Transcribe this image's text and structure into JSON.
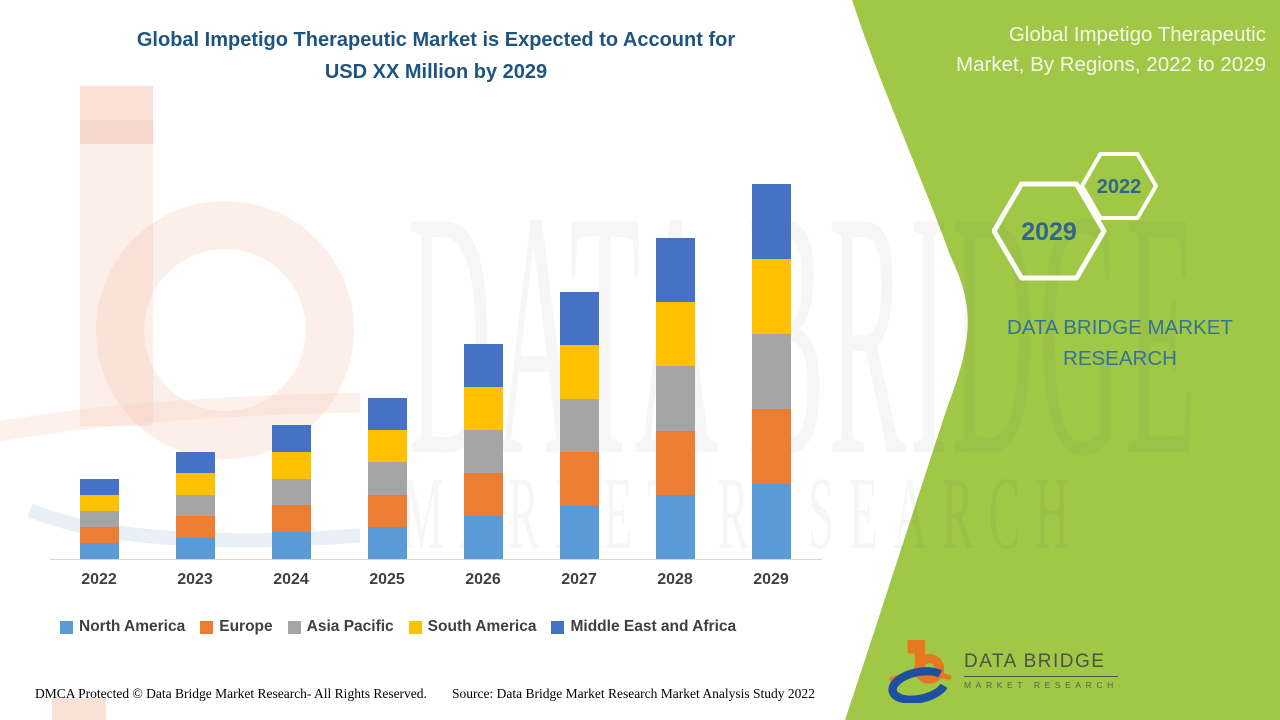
{
  "header": {
    "title_line1": "Global Impetigo Therapeutic Market is Expected to Account for",
    "title_line2": "USD XX Million by 2029"
  },
  "side_panel": {
    "title_line1": "Global Impetigo Therapeutic",
    "title_line2": "Market, By Regions, 2022 to 2029",
    "hex_year_small": "2022",
    "hex_year_large": "2029",
    "brand_line1": "DATA BRIDGE MARKET",
    "brand_line2": "RESEARCH"
  },
  "chart_data": {
    "type": "bar",
    "stacked": true,
    "title": "Global Impetigo Therapeutic Market is Expected to Account for USD XX Million by 2029",
    "categories": [
      "2022",
      "2023",
      "2024",
      "2025",
      "2026",
      "2027",
      "2028",
      "2029"
    ],
    "series": [
      {
        "name": "North America",
        "color": "#5B9BD5",
        "values": [
          16.0,
          21.4,
          26.8,
          32.2,
          43.0,
          53.4,
          64.2,
          75.0
        ]
      },
      {
        "name": "Europe",
        "color": "#ED7D31",
        "values": [
          16.0,
          21.4,
          26.8,
          32.2,
          43.0,
          53.4,
          64.2,
          75.0
        ]
      },
      {
        "name": "Asia Pacific",
        "color": "#A5A5A5",
        "values": [
          16.0,
          21.4,
          26.8,
          32.2,
          43.0,
          53.4,
          64.2,
          75.0
        ]
      },
      {
        "name": "South America",
        "color": "#FFC000",
        "values": [
          16.0,
          21.4,
          26.8,
          32.2,
          43.0,
          53.4,
          64.2,
          75.0
        ]
      },
      {
        "name": "Middle East and Africa",
        "color": "#4472C4",
        "values": [
          16.0,
          21.4,
          26.8,
          32.2,
          43.0,
          53.4,
          64.2,
          75.0
        ]
      }
    ],
    "stack_totals": [
      80,
      107,
      134,
      161,
      215,
      267,
      321,
      375
    ],
    "value_axis": {
      "visible": false,
      "ylim": [
        0,
        400
      ],
      "units": "relative height (actual values shown as USD XX Million)"
    },
    "gridlines": false,
    "legend_position": "bottom"
  },
  "footer": {
    "dmca": "DMCA Protected © Data Bridge Market Research- All Rights Reserved.",
    "source": "Source: Data Bridge Market Research Market Analysis Study 2022"
  },
  "logo": {
    "name": "DATA BRIDGE",
    "subtitle": "MARKET RESEARCH"
  },
  "watermark": {
    "row1": "DATA BRIDGE",
    "row2": "MARKET RESEARCH"
  },
  "colors": {
    "panel_green": "#A0C746",
    "title_blue": "#1E5480",
    "panel_text_teal": "#337595",
    "hexagon_text": "#31678C",
    "axis_label_gray": "#3F3F3F",
    "logo_orange": "#E87722",
    "logo_blue": "#1E4FA1"
  }
}
